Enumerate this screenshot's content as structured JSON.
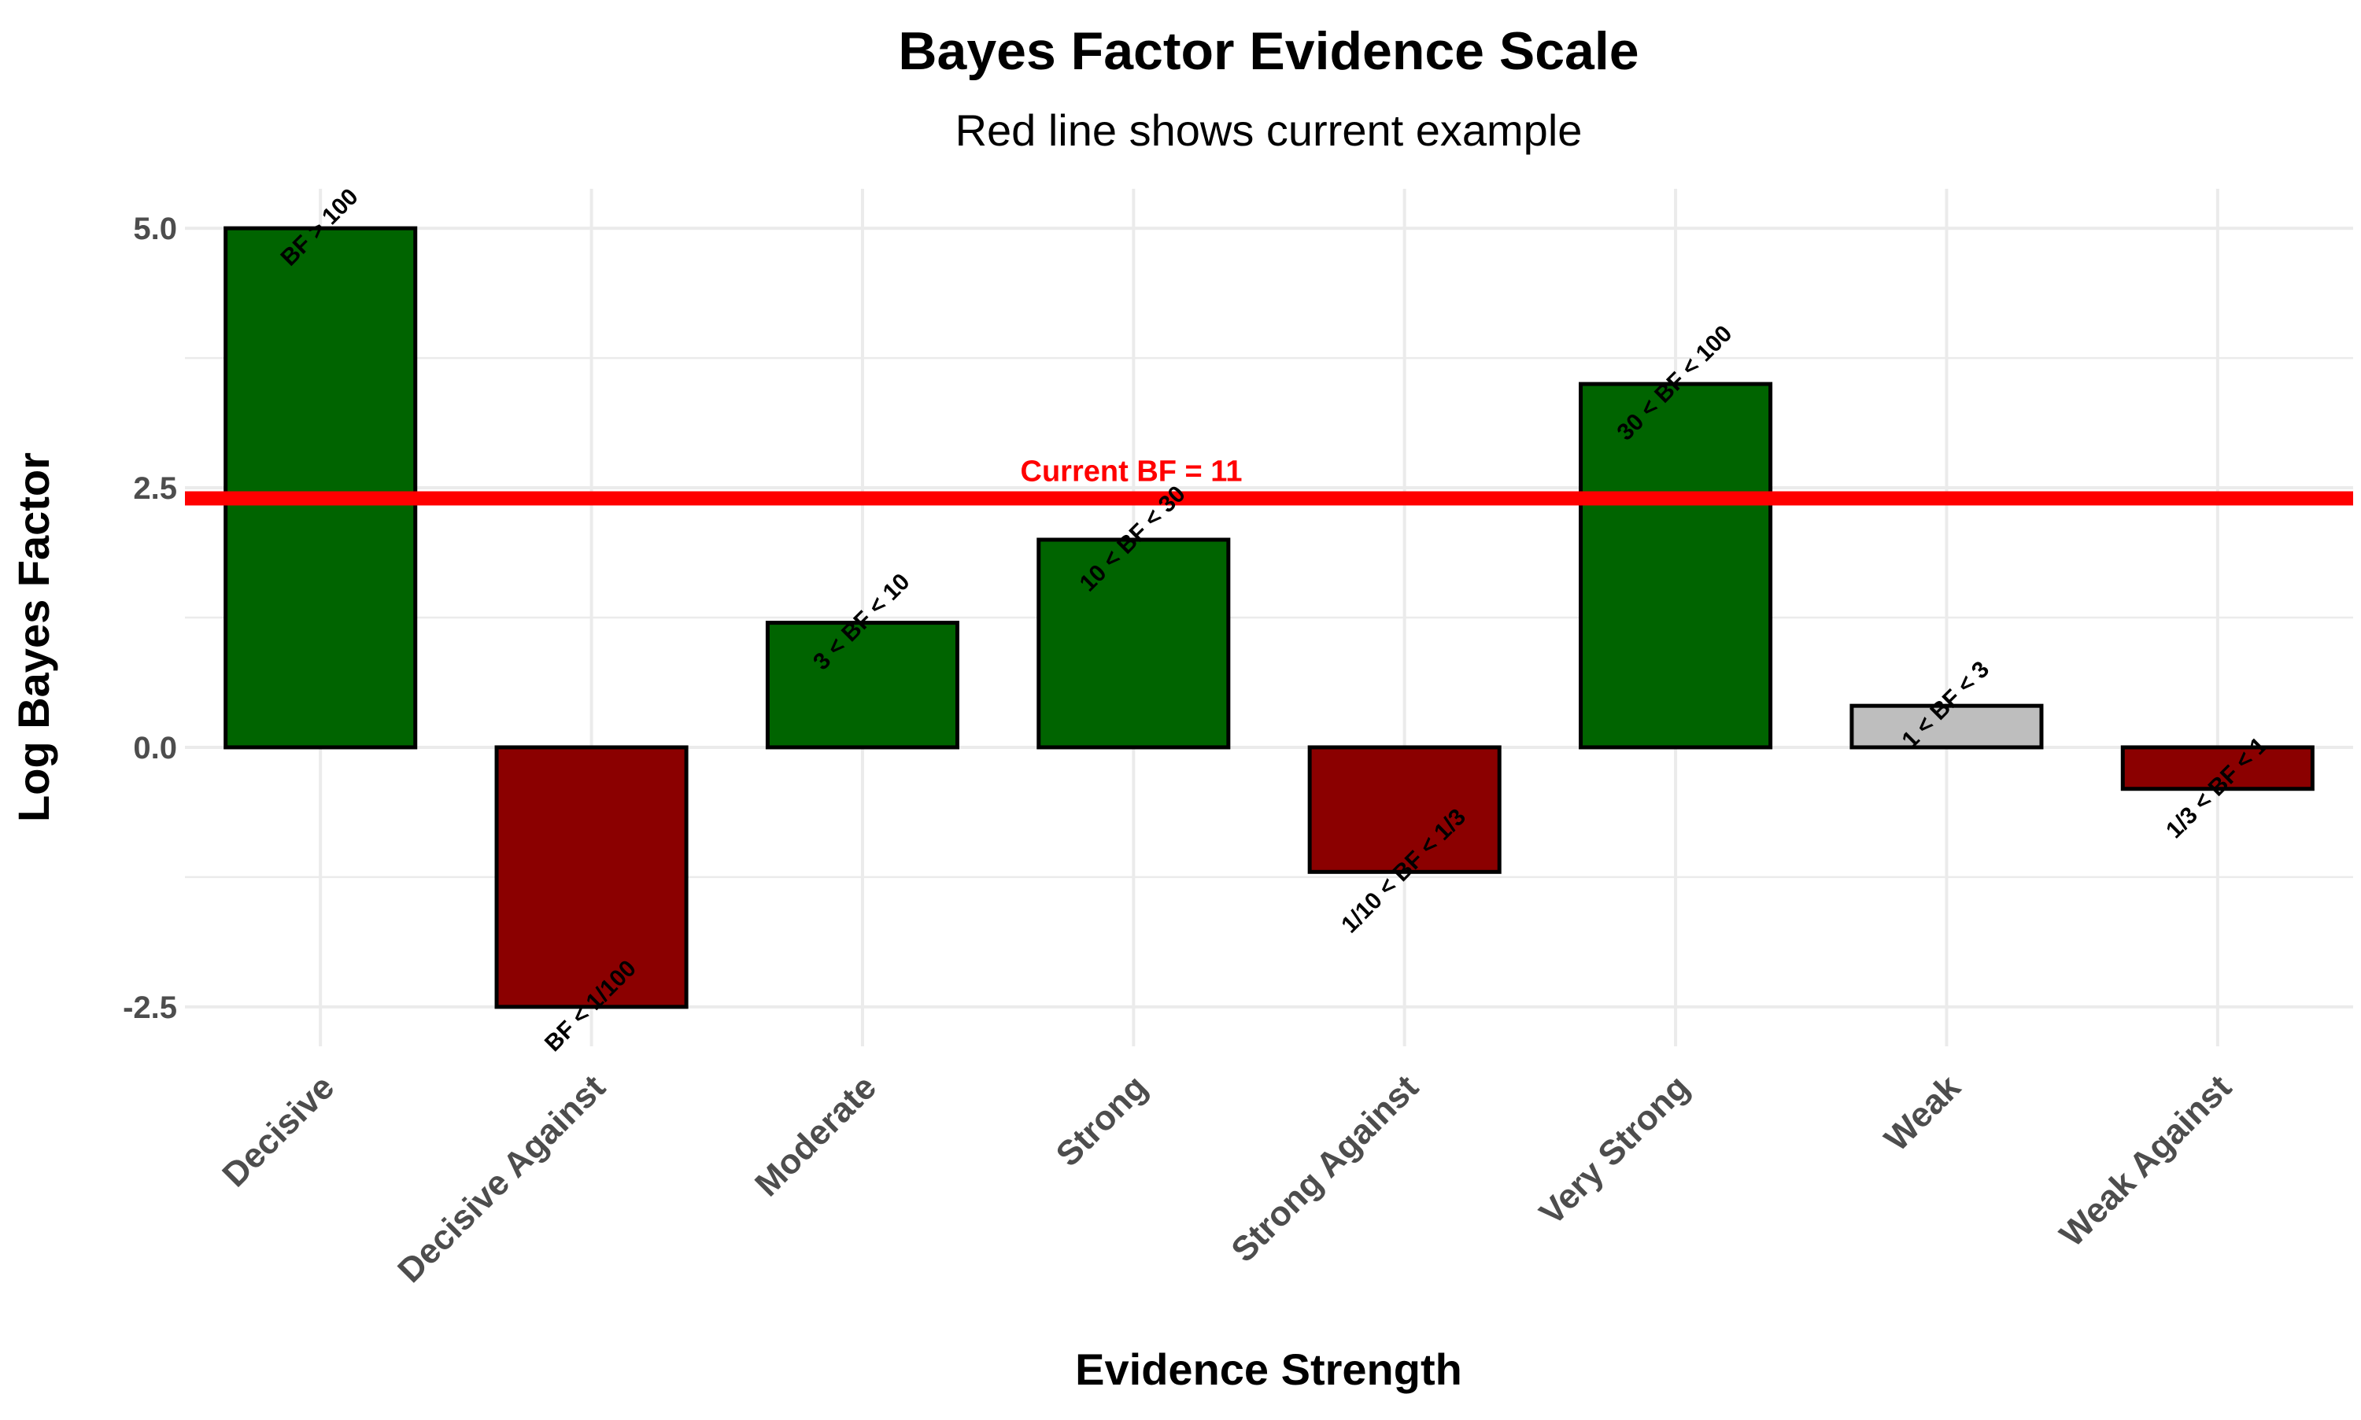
{
  "chart_data": {
    "type": "bar",
    "title": "Bayes Factor Evidence Scale",
    "subtitle": "Red line shows current example",
    "xlabel": "Evidence Strength",
    "ylabel": "Log Bayes Factor",
    "categories": [
      "Decisive",
      "Decisive Against",
      "Moderate",
      "Strong",
      "Strong Against",
      "Very Strong",
      "Weak",
      "Weak Against"
    ],
    "values": [
      5.0,
      -2.5,
      1.2,
      2.0,
      -1.2,
      3.5,
      0.4,
      -0.4
    ],
    "bar_labels": [
      "BF > 100",
      "BF < 1/100",
      "3 < BF < 10",
      "10 < BF < 30",
      "1/10 < BF < 1/3",
      "30 < BF < 100",
      "1 < BF < 3",
      "1/3 < BF < 1"
    ],
    "bar_colors": [
      "#006400",
      "#8b0000",
      "#006400",
      "#006400",
      "#8b0000",
      "#006400",
      "#bebebe",
      "#8b0000"
    ],
    "ylim": [
      -2.88,
      5.38
    ],
    "yticks": [
      -2.5,
      0.0,
      2.5,
      5.0
    ],
    "ytick_labels": [
      "-2.5",
      "0.0",
      "2.5",
      "5.0"
    ],
    "reference_line": {
      "value": 2.3979,
      "label": "Current BF = 11",
      "color": "#ff0000"
    },
    "grid": true,
    "legend": "none"
  }
}
